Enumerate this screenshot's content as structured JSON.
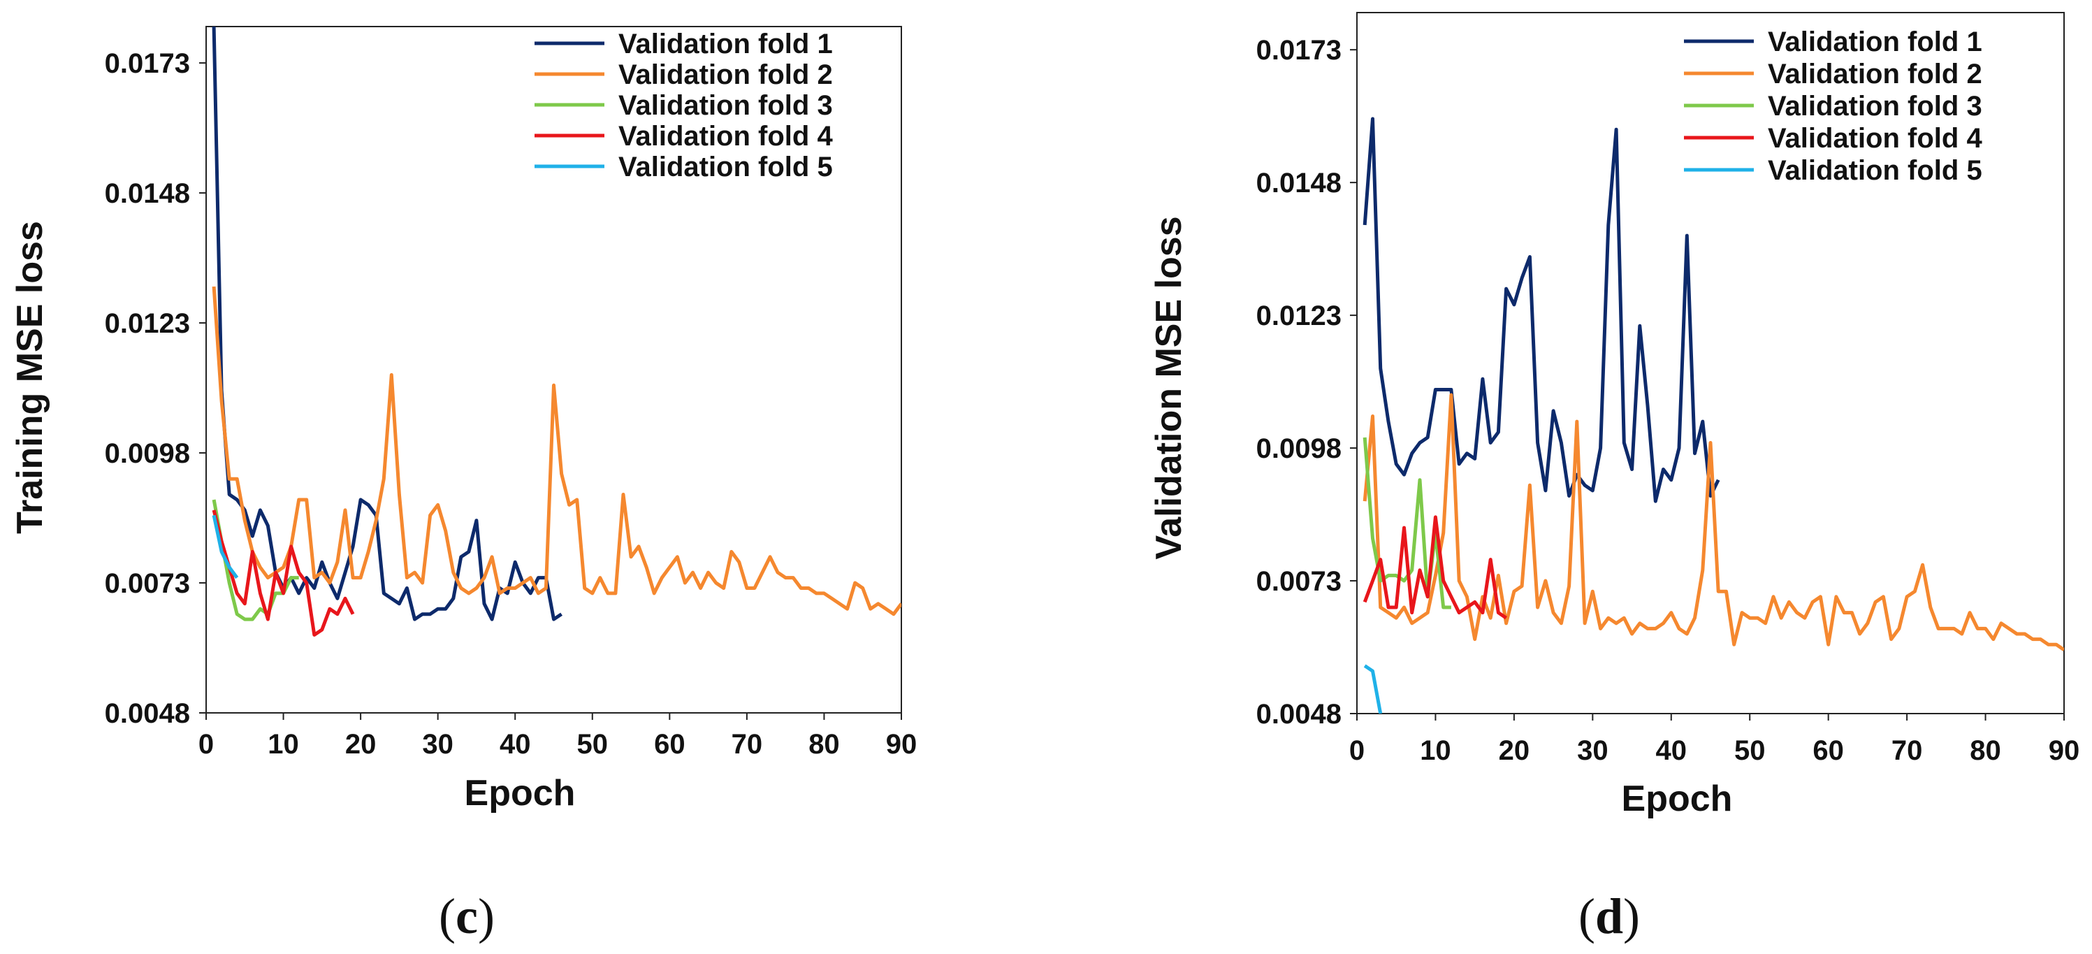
{
  "chart_data": [
    {
      "type": "line",
      "panel_label": "c",
      "xlabel": "Epoch",
      "ylabel": "Training MSE loss",
      "xlim": [
        0,
        90
      ],
      "ylim": [
        0.0048,
        0.018
      ],
      "xticks": [
        0,
        10,
        20,
        30,
        40,
        50,
        60,
        70,
        80,
        90
      ],
      "yticks": [
        0.0048,
        0.0073,
        0.0098,
        0.0123,
        0.0148,
        0.0173
      ],
      "ytick_labels": [
        "0.0048",
        "0.0073",
        "0.0098",
        "0.0123",
        "0.0148",
        "0.0173"
      ],
      "legend_position": "top-right",
      "series": [
        {
          "name": "Validation fold 1",
          "color": "#0d2a6b",
          "x": [
            1,
            2,
            3,
            4,
            5,
            6,
            7,
            8,
            9,
            10,
            11,
            12,
            13,
            14,
            15,
            16,
            17,
            18,
            19,
            20,
            21,
            22,
            23,
            24,
            25,
            26,
            27,
            28,
            29,
            30,
            31,
            32,
            33,
            34,
            35,
            36,
            37,
            38,
            39,
            40,
            41,
            42,
            43,
            44,
            45,
            46
          ],
          "y": [
            0.018,
            0.011,
            0.009,
            0.0089,
            0.0087,
            0.0082,
            0.0087,
            0.0084,
            0.0075,
            0.0072,
            0.0074,
            0.0071,
            0.0074,
            0.0072,
            0.0077,
            0.0073,
            0.007,
            0.0075,
            0.008,
            0.0089,
            0.0088,
            0.0086,
            0.0071,
            0.007,
            0.0069,
            0.0072,
            0.0066,
            0.0067,
            0.0067,
            0.0068,
            0.0068,
            0.007,
            0.0078,
            0.0079,
            0.0085,
            0.0069,
            0.0066,
            0.0072,
            0.0071,
            0.0077,
            0.0073,
            0.0071,
            0.0074,
            0.0074,
            0.0066,
            0.0067
          ]
        },
        {
          "name": "Validation fold 2",
          "color": "#f5882f",
          "x": [
            1,
            2,
            3,
            4,
            5,
            6,
            7,
            8,
            9,
            10,
            11,
            12,
            13,
            14,
            15,
            16,
            17,
            18,
            19,
            20,
            21,
            22,
            23,
            24,
            25,
            26,
            27,
            28,
            29,
            30,
            31,
            32,
            33,
            34,
            35,
            36,
            37,
            38,
            39,
            40,
            41,
            42,
            43,
            44,
            45,
            46,
            47,
            48,
            49,
            50,
            51,
            52,
            53,
            54,
            55,
            56,
            57,
            58,
            59,
            60,
            61,
            62,
            63,
            64,
            65,
            66,
            67,
            68,
            69,
            70,
            71,
            72,
            73,
            74,
            75,
            76,
            77,
            78,
            79,
            80,
            81,
            82,
            83,
            84,
            85,
            86,
            87,
            88,
            89,
            90
          ],
          "y": [
            0.013,
            0.0108,
            0.0093,
            0.0093,
            0.0085,
            0.0079,
            0.0076,
            0.0074,
            0.0075,
            0.0076,
            0.008,
            0.0089,
            0.0089,
            0.0074,
            0.0075,
            0.0073,
            0.0077,
            0.0087,
            0.0074,
            0.0074,
            0.0079,
            0.0085,
            0.0093,
            0.0113,
            0.009,
            0.0074,
            0.0075,
            0.0073,
            0.0086,
            0.0088,
            0.0083,
            0.0075,
            0.0072,
            0.0071,
            0.0072,
            0.0074,
            0.0078,
            0.0071,
            0.0072,
            0.0072,
            0.0073,
            0.0074,
            0.0071,
            0.0072,
            0.0111,
            0.0094,
            0.0088,
            0.0089,
            0.0072,
            0.0071,
            0.0074,
            0.0071,
            0.0071,
            0.009,
            0.0078,
            0.008,
            0.0076,
            0.0071,
            0.0074,
            0.0076,
            0.0078,
            0.0073,
            0.0075,
            0.0072,
            0.0075,
            0.0073,
            0.0072,
            0.0079,
            0.0077,
            0.0072,
            0.0072,
            0.0075,
            0.0078,
            0.0075,
            0.0074,
            0.0074,
            0.0072,
            0.0072,
            0.0071,
            0.0071,
            0.007,
            0.0069,
            0.0068,
            0.0073,
            0.0072,
            0.0068,
            0.0069,
            0.0068,
            0.0067,
            0.0069
          ]
        },
        {
          "name": "Validation fold 3",
          "color": "#7ec94a",
          "x": [
            1,
            2,
            3,
            4,
            5,
            6,
            7,
            8,
            9,
            10,
            11,
            12
          ],
          "y": [
            0.0089,
            0.0081,
            0.0073,
            0.0067,
            0.0066,
            0.0066,
            0.0068,
            0.0067,
            0.0071,
            0.0071,
            0.0074,
            0.0074
          ]
        },
        {
          "name": "Validation fold 4",
          "color": "#e8161b",
          "x": [
            1,
            2,
            3,
            4,
            5,
            6,
            7,
            8,
            9,
            10,
            11,
            12,
            13,
            14,
            15,
            16,
            17,
            18,
            19
          ],
          "y": [
            0.0087,
            0.0081,
            0.0076,
            0.0071,
            0.0069,
            0.0079,
            0.0071,
            0.0066,
            0.0075,
            0.0071,
            0.008,
            0.0075,
            0.0073,
            0.0063,
            0.0064,
            0.0068,
            0.0067,
            0.007,
            0.0067
          ]
        },
        {
          "name": "Validation fold 5",
          "color": "#1fb1e8",
          "x": [
            1,
            2,
            3,
            4
          ],
          "y": [
            0.0086,
            0.0079,
            0.0076,
            0.0074
          ]
        }
      ]
    },
    {
      "type": "line",
      "panel_label": "d",
      "xlabel": "Epoch",
      "ylabel": "Validation MSE loss",
      "xlim": [
        0,
        90
      ],
      "ylim": [
        0.0048,
        0.018
      ],
      "xticks": [
        0,
        10,
        20,
        30,
        40,
        50,
        60,
        70,
        80,
        90
      ],
      "yticks": [
        0.0048,
        0.0073,
        0.0098,
        0.0123,
        0.0148,
        0.0173
      ],
      "ytick_labels": [
        "0.0048",
        "0.0073",
        "0.0098",
        "0.0123",
        "0.0148",
        "0.0173"
      ],
      "legend_position": "top-right",
      "series": [
        {
          "name": "Validation fold 1",
          "color": "#0d2a6b",
          "x": [
            1,
            2,
            3,
            4,
            5,
            6,
            7,
            8,
            9,
            10,
            11,
            12,
            13,
            14,
            15,
            16,
            17,
            18,
            19,
            20,
            21,
            22,
            23,
            24,
            25,
            26,
            27,
            28,
            29,
            30,
            31,
            32,
            33,
            34,
            35,
            36,
            37,
            38,
            39,
            40,
            41,
            42,
            43,
            44,
            45,
            46
          ],
          "y": [
            0.014,
            0.016,
            0.0113,
            0.0103,
            0.0095,
            0.0093,
            0.0097,
            0.0099,
            0.01,
            0.0109,
            0.0109,
            0.0109,
            0.0095,
            0.0097,
            0.0096,
            0.0111,
            0.0099,
            0.0101,
            0.0128,
            0.0125,
            0.013,
            0.0134,
            0.0099,
            0.009,
            0.0105,
            0.0099,
            0.0089,
            0.0093,
            0.0091,
            0.009,
            0.0098,
            0.014,
            0.0158,
            0.0099,
            0.0094,
            0.0121,
            0.0106,
            0.0088,
            0.0094,
            0.0092,
            0.0098,
            0.0138,
            0.0097,
            0.0103,
            0.0089,
            0.0092
          ]
        },
        {
          "name": "Validation fold 2",
          "color": "#f5882f",
          "x": [
            1,
            2,
            3,
            4,
            5,
            6,
            7,
            8,
            9,
            10,
            11,
            12,
            13,
            14,
            15,
            16,
            17,
            18,
            19,
            20,
            21,
            22,
            23,
            24,
            25,
            26,
            27,
            28,
            29,
            30,
            31,
            32,
            33,
            34,
            35,
            36,
            37,
            38,
            39,
            40,
            41,
            42,
            43,
            44,
            45,
            46,
            47,
            48,
            49,
            50,
            51,
            52,
            53,
            54,
            55,
            56,
            57,
            58,
            59,
            60,
            61,
            62,
            63,
            64,
            65,
            66,
            67,
            68,
            69,
            70,
            71,
            72,
            73,
            74,
            75,
            76,
            77,
            78,
            79,
            80,
            81,
            82,
            83,
            84,
            85,
            86,
            87,
            88,
            89,
            90
          ],
          "y": [
            0.0088,
            0.0104,
            0.0068,
            0.0067,
            0.0066,
            0.0068,
            0.0065,
            0.0066,
            0.0067,
            0.0074,
            0.0082,
            0.0108,
            0.0073,
            0.007,
            0.0062,
            0.007,
            0.0066,
            0.0074,
            0.0065,
            0.0071,
            0.0072,
            0.0091,
            0.0068,
            0.0073,
            0.0067,
            0.0065,
            0.0072,
            0.0103,
            0.0065,
            0.0071,
            0.0064,
            0.0066,
            0.0065,
            0.0066,
            0.0063,
            0.0065,
            0.0064,
            0.0064,
            0.0065,
            0.0067,
            0.0064,
            0.0063,
            0.0066,
            0.0075,
            0.0099,
            0.0071,
            0.0071,
            0.0061,
            0.0067,
            0.0066,
            0.0066,
            0.0065,
            0.007,
            0.0066,
            0.0069,
            0.0067,
            0.0066,
            0.0069,
            0.007,
            0.0061,
            0.007,
            0.0067,
            0.0067,
            0.0063,
            0.0065,
            0.0069,
            0.007,
            0.0062,
            0.0064,
            0.007,
            0.0071,
            0.0076,
            0.0068,
            0.0064,
            0.0064,
            0.0064,
            0.0063,
            0.0067,
            0.0064,
            0.0064,
            0.0062,
            0.0065,
            0.0064,
            0.0063,
            0.0063,
            0.0062,
            0.0062,
            0.0061,
            0.0061,
            0.006
          ]
        },
        {
          "name": "Validation fold 3",
          "color": "#7ec94a",
          "x": [
            1,
            2,
            3,
            4,
            5,
            6,
            7,
            8,
            9,
            10,
            11,
            12
          ],
          "y": [
            0.01,
            0.0081,
            0.0073,
            0.0074,
            0.0074,
            0.0073,
            0.0075,
            0.0092,
            0.007,
            0.0082,
            0.0068,
            0.0068
          ]
        },
        {
          "name": "Validation fold 4",
          "color": "#e8161b",
          "x": [
            1,
            2,
            3,
            4,
            5,
            6,
            7,
            8,
            9,
            10,
            11,
            12,
            13,
            14,
            15,
            16,
            17,
            18,
            19
          ],
          "y": [
            0.0069,
            0.0073,
            0.0077,
            0.0068,
            0.0068,
            0.0083,
            0.0067,
            0.0075,
            0.007,
            0.0085,
            0.0073,
            0.007,
            0.0067,
            0.0068,
            0.0069,
            0.0067,
            0.0077,
            0.0067,
            0.0066
          ]
        },
        {
          "name": "Validation fold 5",
          "color": "#1fb1e8",
          "x": [
            1,
            2,
            3
          ],
          "y": [
            0.0057,
            0.0056,
            0.0048
          ]
        }
      ]
    }
  ]
}
